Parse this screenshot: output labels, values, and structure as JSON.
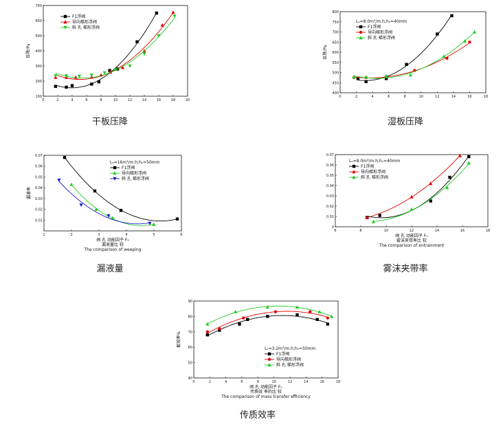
{
  "chart_data": [
    {
      "id": "chart1",
      "type": "line",
      "title": "",
      "caption": "干板压降",
      "xlabel": "",
      "ylabel": "压降/Pa",
      "xlim": [
        0,
        20
      ],
      "ylim": [
        100,
        700
      ],
      "xticks": [
        0,
        2,
        4,
        6,
        8,
        10,
        12,
        14,
        16,
        18,
        20
      ],
      "yticks": [
        100,
        200,
        300,
        400,
        500,
        600,
        700
      ],
      "note": "",
      "legend_position": "top-left",
      "series": [
        {
          "name": "F1浮阀",
          "color": "#000000",
          "marker": "square",
          "x": [
            1.7,
            3.2,
            4.0,
            6.7,
            7.7,
            9.2,
            10.3,
            13.0,
            15.7
          ],
          "y": [
            165,
            160,
            170,
            180,
            195,
            270,
            280,
            460,
            650
          ]
        },
        {
          "name": "导向梯形浮阀",
          "color": "#e00000",
          "marker": "triangle-up",
          "x": [
            1.7,
            3.2,
            4.5,
            6.7,
            8.0,
            9.3,
            11.0,
            14.0,
            16.5,
            18.0
          ],
          "y": [
            225,
            225,
            225,
            228,
            240,
            260,
            290,
            400,
            570,
            655
          ]
        },
        {
          "name": "斜 孔 梯形浮阀",
          "color": "#22cc22",
          "marker": "triangle-down",
          "x": [
            1.7,
            3.2,
            5.0,
            6.7,
            8.5,
            10.0,
            12.0,
            14.0,
            16.0,
            18.2
          ],
          "y": [
            235,
            235,
            232,
            240,
            255,
            275,
            300,
            380,
            500,
            630
          ]
        }
      ]
    },
    {
      "id": "chart2",
      "type": "line",
      "title": "",
      "caption": "湿板压降",
      "xlabel": "",
      "ylabel": "压降/Pa",
      "xlim": [
        0,
        18
      ],
      "ylim": [
        400,
        800
      ],
      "xticks": [
        0,
        2,
        4,
        6,
        8,
        10,
        12,
        14,
        16,
        18
      ],
      "yticks": [
        400,
        450,
        500,
        550,
        600,
        650,
        700,
        750,
        800
      ],
      "note": "Lₛ=8.0m³/m.h;hₛ=40mm",
      "legend_position": "top-left",
      "series": [
        {
          "name": "F1浮阀",
          "color": "#000000",
          "marker": "square",
          "x": [
            2.2,
            3.2,
            5.7,
            8.2,
            12.0,
            13.8
          ],
          "y": [
            470,
            455,
            470,
            540,
            690,
            780
          ]
        },
        {
          "name": "导向梯形浮阀",
          "color": "#e00000",
          "marker": "circle",
          "x": [
            1.7,
            3.2,
            5.7,
            9.2,
            13.2,
            16.0
          ],
          "y": [
            475,
            475,
            480,
            510,
            570,
            650
          ]
        },
        {
          "name": "斜 孔 梯形浮阀",
          "color": "#22cc22",
          "marker": "triangle-up",
          "x": [
            1.7,
            3.2,
            5.7,
            8.7,
            12.8,
            15.4,
            16.6
          ],
          "y": [
            478,
            478,
            483,
            488,
            580,
            655,
            700
          ]
        }
      ]
    },
    {
      "id": "chart3",
      "type": "line",
      "title": "漏液量比 较",
      "subtitle": "The comparison of weeping",
      "caption": "漏液量",
      "xlabel": "阀 孔 动能因子 F₀",
      "ylabel": "漏液率",
      "xlim": [
        1,
        6
      ],
      "ylim": [
        0,
        0.07
      ],
      "xticks": [
        1,
        2,
        3,
        4,
        5,
        6
      ],
      "yticks": [
        0.01,
        0.02,
        0.03,
        0.04,
        0.05,
        0.06,
        0.07
      ],
      "note": "Lₛ=16m³/m.h;hₛ=50mm",
      "legend_position": "top-right",
      "series": [
        {
          "name": "F1浮阀",
          "color": "#000000",
          "marker": "square",
          "x": [
            1.75,
            2.85,
            3.8,
            5.85
          ],
          "y": [
            0.068,
            0.037,
            0.019,
            0.011
          ]
        },
        {
          "name": "导向梯形浮阀",
          "color": "#22cc22",
          "marker": "triangle-up",
          "x": [
            2.0,
            2.9,
            3.5,
            5.0
          ],
          "y": [
            0.043,
            0.02,
            0.012,
            0.006
          ]
        },
        {
          "name": "斜 孔 梯形浮阀",
          "color": "#1a1acc",
          "marker": "triangle-down",
          "x": [
            1.55,
            2.35,
            3.35,
            4.85
          ],
          "y": [
            0.047,
            0.024,
            0.014,
            0.007
          ]
        }
      ]
    },
    {
      "id": "chart4",
      "type": "line",
      "title": "雾沫夹带率比 较",
      "subtitle": "The comparison of entrainment",
      "caption": "雾沫夹带率",
      "xlabel": "阀 孔 动能因子 F₀",
      "ylabel": "雾沫夹带率",
      "xlim": [
        6,
        18
      ],
      "ylim": [
        0,
        0.07
      ],
      "xticks": [
        6,
        8,
        10,
        12,
        14,
        16,
        18
      ],
      "yticks": [
        0,
        0.01,
        0.02,
        0.03,
        0.04,
        0.05,
        0.06,
        0.07
      ],
      "note": "Lₛ=8.0m³/m.h;hₛ=40mm",
      "legend_position": "top-left",
      "series": [
        {
          "name": "F1浮阀",
          "color": "#000000",
          "marker": "square",
          "x": [
            8.5,
            9.5,
            13.5,
            15.0,
            16.5
          ],
          "y": [
            0.009,
            0.011,
            0.025,
            0.048,
            0.068
          ]
        },
        {
          "name": "导向梯形浮阀",
          "color": "#e00000",
          "marker": "triangle-up",
          "x": [
            8.5,
            12.0,
            13.5,
            15.8
          ],
          "y": [
            0.009,
            0.029,
            0.042,
            0.069
          ]
        },
        {
          "name": "斜 孔 梯形浮阀",
          "color": "#22cc22",
          "marker": "triangle-up",
          "x": [
            9.0,
            12.0,
            14.8,
            16.5
          ],
          "y": [
            0.005,
            0.017,
            0.038,
            0.062
          ]
        }
      ]
    },
    {
      "id": "chart5",
      "type": "line",
      "title": "传质效 率的比 较",
      "subtitle": "The comparison of mass transfer efficiency",
      "caption": "传质效率",
      "xlabel": "阀 孔 动能因子 F₀",
      "ylabel": "板效率%",
      "xlim": [
        0,
        18
      ],
      "ylim": [
        40,
        90
      ],
      "xticks": [
        0,
        2,
        4,
        6,
        8,
        10,
        12,
        14,
        16,
        18
      ],
      "yticks": [
        40,
        50,
        60,
        70,
        80,
        90
      ],
      "note": "Lₛ=3.2m³/m.h;hₛ=50mm",
      "legend_position": "bottom-center",
      "series": [
        {
          "name": "F1浮阀",
          "color": "#000000",
          "marker": "square",
          "x": [
            1.7,
            3.2,
            5.7,
            6.7,
            9.2,
            12.9,
            15.4,
            16.7
          ],
          "y": [
            68,
            71,
            75,
            78,
            80,
            81,
            78,
            75
          ]
        },
        {
          "name": "导向梯形浮阀",
          "color": "#e00000",
          "marker": "circle",
          "x": [
            1.7,
            3.2,
            6.2,
            10.2,
            14.5,
            16.7
          ],
          "y": [
            70,
            72,
            79,
            83,
            83,
            79
          ]
        },
        {
          "name": "斜 孔 梯形浮阀",
          "color": "#22cc22",
          "marker": "triangle-up",
          "x": [
            1.7,
            5.2,
            9.2,
            12.9,
            15.7,
            17.2
          ],
          "y": [
            75,
            83,
            86,
            86,
            83,
            80
          ]
        }
      ]
    }
  ]
}
